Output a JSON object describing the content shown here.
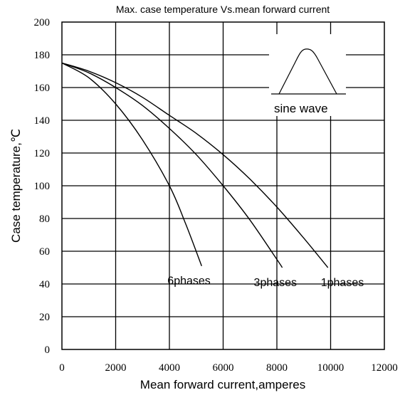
{
  "chart_data": {
    "type": "line",
    "title": "Max. case temperature Vs.mean forward current",
    "xlabel": "Mean forward current,amperes",
    "ylabel": "Case temperature,℃",
    "xlim": [
      0,
      12000
    ],
    "ylim": [
      0,
      200
    ],
    "xticks": [
      0,
      2000,
      4000,
      6000,
      8000,
      10000,
      12000
    ],
    "yticks": [
      0,
      20,
      40,
      60,
      80,
      100,
      120,
      140,
      160,
      180,
      200
    ],
    "grid": true,
    "inset_label": "sine wave",
    "series": [
      {
        "name": "1phases",
        "x": [
          0,
          1000,
          2000,
          3000,
          4000,
          5000,
          6000,
          7000,
          8000,
          9000,
          9900
        ],
        "y": [
          175,
          170,
          163,
          154,
          143,
          132,
          119,
          104,
          87,
          68,
          50
        ]
      },
      {
        "name": "3phases",
        "x": [
          0,
          1000,
          2000,
          3000,
          4000,
          5000,
          6000,
          7000,
          8000,
          8200
        ],
        "y": [
          175,
          169,
          160,
          149,
          135,
          119,
          100,
          79,
          55,
          50
        ]
      },
      {
        "name": "6phases",
        "x": [
          0,
          1000,
          2000,
          3000,
          4000,
          4600,
          5200
        ],
        "y": [
          175,
          166,
          150,
          128,
          100,
          77,
          51
        ]
      }
    ]
  }
}
